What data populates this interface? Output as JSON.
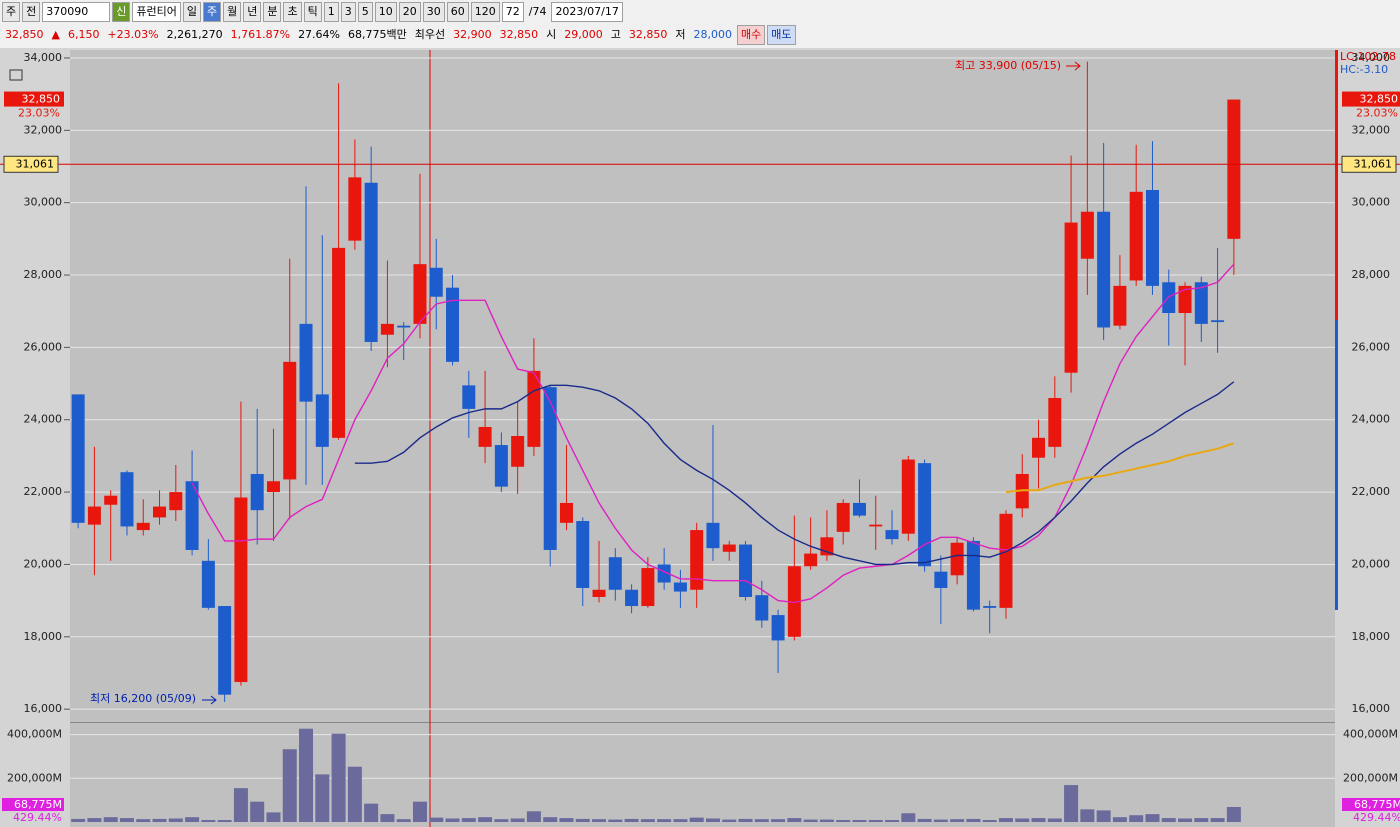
{
  "toolbar": {
    "row1": [
      "주",
      "전",
      "370090",
      "신",
      "퓨런티어",
      "일",
      "주",
      "월",
      "년",
      "분",
      "초",
      "틱",
      "1",
      "3",
      "5",
      "10",
      "20",
      "30",
      "60",
      "120",
      "72",
      "/74",
      "2023/07/17"
    ],
    "row2": [
      "32,850",
      "▲",
      "6,150",
      "+23.03%",
      "2,261,270",
      "1,761.87%",
      "27.64%",
      "68,775백만",
      "최우선",
      "32,900",
      "32,850",
      "시",
      "29,000",
      "고",
      "32,850",
      "저",
      "28,000",
      "매수",
      "매도"
    ]
  },
  "chart_data": {
    "type": "candlestick",
    "up_color": "#e8160c",
    "down_color": "#1c5ccc",
    "ylim": [
      15700,
      34220
    ],
    "yticks": [
      {
        "value": 16000,
        "label": "16,000"
      },
      {
        "value": 18000,
        "label": "18,000"
      },
      {
        "value": 20000,
        "label": "20,000"
      },
      {
        "value": 22000,
        "label": "22,000"
      },
      {
        "value": 24000,
        "label": "24,000"
      },
      {
        "value": 26000,
        "label": "26,000"
      },
      {
        "value": 28000,
        "label": "28,000"
      },
      {
        "value": 30000,
        "label": "30,000"
      },
      {
        "value": 32000,
        "label": "32,000"
      },
      {
        "value": 34000,
        "label": "34,000"
      }
    ],
    "grid": true,
    "open": [
      24700,
      21100,
      21650,
      22550,
      20950,
      21300,
      21500,
      22300,
      20100,
      18850,
      16750,
      22500,
      22000,
      22350,
      26650,
      24700,
      23500,
      28950,
      30550,
      26350,
      26600,
      26650,
      28200,
      27650,
      24950,
      23250,
      23300,
      22700,
      23250,
      24900,
      21150,
      21200,
      19100,
      20200,
      19300,
      18850,
      20000,
      19500,
      19300,
      21150,
      20350,
      20550,
      19150,
      18600,
      18000,
      19950,
      20250,
      20900,
      21700,
      21050,
      20950,
      20850,
      22800,
      19800,
      19700,
      20650,
      18850,
      18800,
      21550,
      22950,
      23250,
      25300,
      28450,
      29750,
      26600,
      27850,
      30350,
      27800,
      26950,
      27800,
      26750,
      29000
    ],
    "high": [
      24700,
      23250,
      22050,
      22600,
      21800,
      22050,
      22750,
      23150,
      20700,
      18850,
      24500,
      24300,
      23750,
      28450,
      30450,
      29100,
      33300,
      31750,
      31550,
      28400,
      26700,
      30800,
      29000,
      28000,
      25350,
      25350,
      23650,
      24500,
      26250,
      24950,
      23300,
      21300,
      20650,
      20450,
      19450,
      20200,
      20450,
      19850,
      21150,
      23850,
      20650,
      20650,
      19550,
      18750,
      21350,
      21300,
      21500,
      21800,
      22350,
      21900,
      21500,
      23000,
      22900,
      20250,
      20750,
      20750,
      19000,
      21500,
      23050,
      24000,
      25200,
      31300,
      33900,
      31650,
      28550,
      31600,
      31700,
      28150,
      27800,
      27950,
      28750,
      32850
    ],
    "low": [
      21000,
      19700,
      20100,
      20800,
      20800,
      21100,
      21200,
      20250,
      18750,
      16200,
      16650,
      20550,
      20650,
      21250,
      22200,
      22200,
      23450,
      28700,
      25900,
      25450,
      25650,
      26250,
      26500,
      25500,
      23500,
      22800,
      22000,
      21950,
      23000,
      19950,
      20950,
      18850,
      18950,
      19000,
      18650,
      18800,
      19300,
      18800,
      18800,
      20100,
      20100,
      19000,
      18250,
      17000,
      17900,
      19850,
      20100,
      20550,
      21300,
      20400,
      20550,
      20650,
      19800,
      18350,
      19450,
      18700,
      18100,
      18500,
      21300,
      22100,
      22950,
      24750,
      27450,
      26200,
      26500,
      27700,
      27450,
      26050,
      25500,
      26150,
      25850,
      28000
    ],
    "close": [
      21150,
      21600,
      21900,
      21050,
      21150,
      21600,
      22000,
      20400,
      18800,
      16400,
      21850,
      21500,
      22300,
      25600,
      24500,
      23250,
      28750,
      30700,
      26150,
      26650,
      26550,
      28300,
      27400,
      25600,
      24300,
      23800,
      22150,
      23550,
      25350,
      20400,
      21700,
      19350,
      19300,
      19300,
      18850,
      19900,
      19500,
      19250,
      20950,
      20450,
      20550,
      19100,
      18450,
      17900,
      19950,
      20300,
      20750,
      21700,
      21350,
      21100,
      20700,
      22900,
      19950,
      19350,
      20600,
      18750,
      18800,
      21400,
      22500,
      23500,
      24600,
      29450,
      29750,
      26550,
      27700,
      30300,
      27700,
      26950,
      27700,
      26650,
      26700,
      32850
    ],
    "moving_averages": [
      {
        "color": "#e020c0",
        "values": [
          null,
          null,
          null,
          null,
          null,
          null,
          null,
          22250,
          21400,
          20650,
          20650,
          20700,
          20700,
          21300,
          21600,
          21800,
          22900,
          24000,
          24800,
          25700,
          26100,
          26700,
          27200,
          27300,
          27300,
          27300,
          26300,
          25400,
          25300,
          24500,
          23500,
          22600,
          21700,
          21000,
          20400,
          20000,
          19800,
          19600,
          19600,
          19550,
          19550,
          19550,
          19300,
          19000,
          18950,
          19050,
          19350,
          19700,
          19900,
          19950,
          20000,
          20250,
          20550,
          20750,
          20750,
          20600,
          20450,
          20400,
          20500,
          20800,
          21300,
          22200,
          23300,
          24500,
          25550,
          26300,
          26850,
          27400,
          27600,
          27650,
          27800,
          28300
        ]
      },
      {
        "color": "#1a2a8a",
        "values": [
          null,
          null,
          null,
          null,
          null,
          null,
          null,
          null,
          null,
          null,
          null,
          null,
          null,
          null,
          null,
          null,
          null,
          22800,
          22800,
          22850,
          23100,
          23500,
          23800,
          24050,
          24200,
          24300,
          24300,
          24500,
          24800,
          24950,
          24950,
          24900,
          24800,
          24600,
          24300,
          23900,
          23350,
          22900,
          22600,
          22350,
          22050,
          21700,
          21300,
          20950,
          20700,
          20500,
          20350,
          20200,
          20100,
          20000,
          20000,
          20050,
          20050,
          20150,
          20250,
          20250,
          20200,
          20350,
          20600,
          20900,
          21300,
          21750,
          22250,
          22700,
          23050,
          23350,
          23600,
          23900,
          24200,
          24450,
          24700,
          25050
        ]
      },
      {
        "color": "#e8a810",
        "values": [
          null,
          null,
          null,
          null,
          null,
          null,
          null,
          null,
          null,
          null,
          null,
          null,
          null,
          null,
          null,
          null,
          null,
          null,
          null,
          null,
          null,
          null,
          null,
          null,
          null,
          null,
          null,
          null,
          null,
          null,
          null,
          null,
          null,
          null,
          null,
          null,
          null,
          null,
          null,
          null,
          null,
          null,
          null,
          null,
          null,
          null,
          null,
          null,
          null,
          null,
          null,
          null,
          null,
          null,
          null,
          null,
          null,
          22000,
          22050,
          22050,
          22200,
          22300,
          22400,
          22450,
          22550,
          22650,
          22750,
          22850,
          23000,
          23100,
          23200,
          23350
        ]
      }
    ],
    "annotations": [
      {
        "text": "최고 33,900 (05/15)"
      },
      {
        "text": "최저 16,200 (05/09)"
      }
    ],
    "crosshair": {
      "value": 31061,
      "label": "31,061"
    },
    "last_price": {
      "value": 32850,
      "label": "32,850",
      "change": "23.03%"
    },
    "indicator_labels": [
      "LC:102.78",
      "HC:-3.10"
    ],
    "volume": {
      "color": "#6a6a9c",
      "ylim": [
        0,
        444000
      ],
      "yticks": [
        {
          "value": 200000,
          "label": "200,000M"
        },
        {
          "value": 400000,
          "label": "400,000M"
        }
      ],
      "values": [
        14000,
        18000,
        22000,
        18000,
        13000,
        14000,
        16000,
        22000,
        9000,
        9000,
        155000,
        93000,
        44000,
        333000,
        427000,
        218000,
        404000,
        253000,
        84000,
        36000,
        13000,
        93000,
        20000,
        16000,
        18000,
        22000,
        13000,
        16000,
        49000,
        22000,
        18000,
        14000,
        13000,
        11000,
        14000,
        13000,
        13000,
        13000,
        20000,
        16000,
        11000,
        14000,
        13000,
        13000,
        18000,
        11000,
        11000,
        9000,
        9000,
        9000,
        9000,
        40000,
        14000,
        11000,
        13000,
        14000,
        9000,
        18000,
        16000,
        18000,
        16000,
        169000,
        58000,
        53000,
        22000,
        31000,
        36000,
        18000,
        16000,
        18000,
        18000,
        68775
      ],
      "last": {
        "value": 68775,
        "label": "68,775M",
        "ratio": "429.44%"
      }
    }
  }
}
